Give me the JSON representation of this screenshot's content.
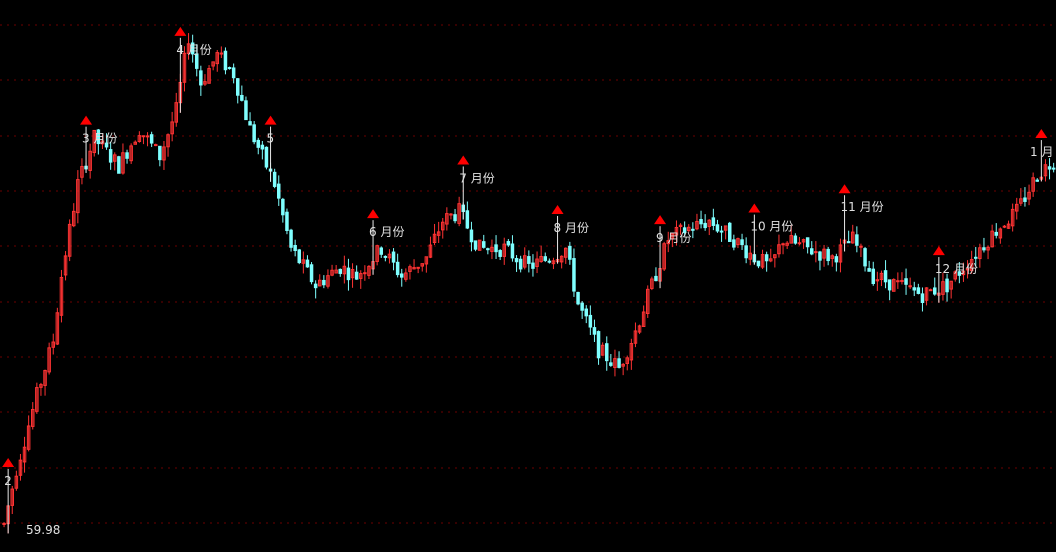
{
  "chart_data": {
    "type": "candlestick",
    "title": "",
    "xlabel": "",
    "ylabel": "",
    "price_label": "59.98",
    "ylim": [
      55,
      115
    ],
    "grid": true,
    "colors": {
      "background": "#000000",
      "grid": "#6b0000",
      "up": "#ff3333",
      "down": "#7fffff",
      "marker": "#ff0000",
      "month_text": "#e0e0e0"
    },
    "month_markers": [
      {
        "label": "2",
        "bar": 1
      },
      {
        "label": "3 月份",
        "bar": 20
      },
      {
        "label": "4 月份",
        "bar": 43
      },
      {
        "label": "5",
        "bar": 65
      },
      {
        "label": "6 月份",
        "bar": 90
      },
      {
        "label": "7 月份",
        "bar": 112
      },
      {
        "label": "8 月份",
        "bar": 135
      },
      {
        "label": "9 月份",
        "bar": 160
      },
      {
        "label": "10 月份",
        "bar": 183
      },
      {
        "label": "11 月份",
        "bar": 205
      },
      {
        "label": "12 月份",
        "bar": 228
      },
      {
        "label": "1 月",
        "bar": 253
      }
    ],
    "ohlc": []
  }
}
